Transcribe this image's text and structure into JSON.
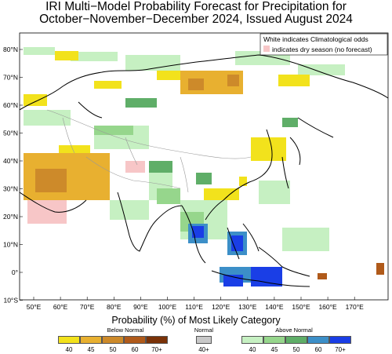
{
  "title_line1": "IRI Multi−Model Probability Forecast for Precipitation for",
  "title_line2": "October−November−December 2024, Issued August 2024",
  "legend_box": {
    "line1": "White indicates Climatological odds",
    "line2": "indicates dry season (no forecast)",
    "dry_color": "#f7c6c7"
  },
  "lat_labels": [
    "80°N",
    "70°N",
    "60°N",
    "50°N",
    "40°N",
    "30°N",
    "20°N",
    "10°N",
    "0°",
    "10°S"
  ],
  "lon_labels": [
    "50°E",
    "60°E",
    "70°E",
    "80°E",
    "90°E",
    "100°E",
    "110°E",
    "120°E",
    "130°E",
    "140°E",
    "150°E",
    "160°E",
    "170°E"
  ],
  "x_axis_title": "Probability (%) of Most Likely Category",
  "categories": {
    "below": {
      "label": "Below Normal",
      "levels": [
        "40",
        "45",
        "50",
        "60",
        "70+"
      ],
      "colors": [
        "#f2e21c",
        "#e8b030",
        "#cd8a2a",
        "#b05a1a",
        "#7a3208"
      ]
    },
    "normal": {
      "label": "Normal",
      "levels": [
        "40+"
      ],
      "colors": [
        "#c8c8c8"
      ]
    },
    "above": {
      "label": "Above Normal",
      "levels": [
        "40",
        "45",
        "50",
        "60",
        "70+"
      ],
      "colors": [
        "#c6f0c2",
        "#96d68c",
        "#5fae68",
        "#3c8fc8",
        "#1a3ee6"
      ]
    }
  }
}
